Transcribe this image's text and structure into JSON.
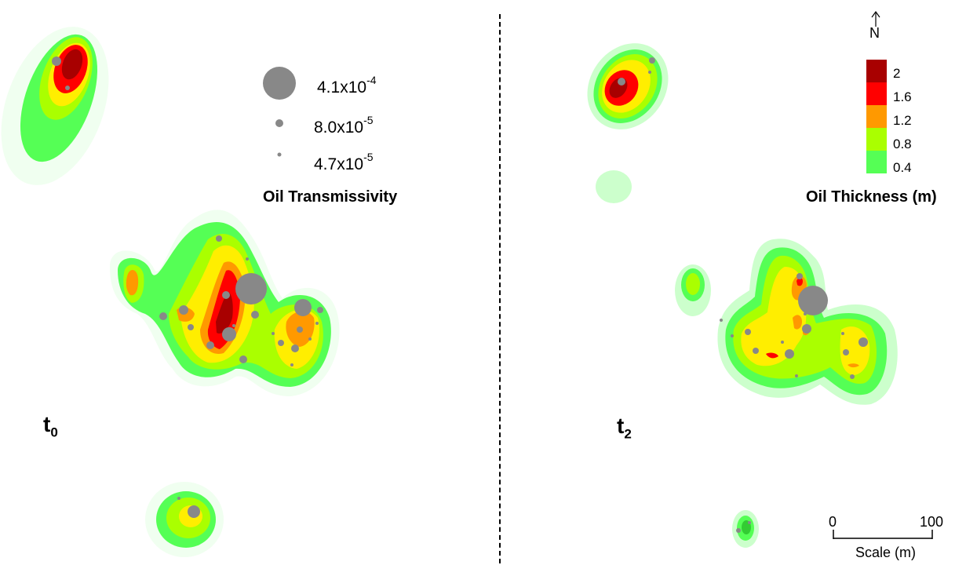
{
  "panels": {
    "left": {
      "label_main": "t",
      "label_sub": "0"
    },
    "right": {
      "label_main": "t",
      "label_sub": "2"
    }
  },
  "transmissivity_legend": {
    "title": "Oil Transmissivity",
    "entries": [
      {
        "mantissa": "4.1x10",
        "exponent": "-4"
      },
      {
        "mantissa": "8.0x10",
        "exponent": "-5"
      },
      {
        "mantissa": "4.7x10",
        "exponent": "-5"
      }
    ],
    "marker_color": "#888888"
  },
  "thickness_legend": {
    "title": "Oil Thickness (m)",
    "classes": [
      {
        "label": "2",
        "color": "#a80000"
      },
      {
        "label": "1.6",
        "color": "#ff0000"
      },
      {
        "label": "1.2",
        "color": "#ff9900"
      },
      {
        "label": "0.8",
        "color": "#aaff00"
      },
      {
        "label": "0.4",
        "color": "#55ff55"
      }
    ],
    "outer_halo_color": "#ccffcc"
  },
  "north_arrow": {
    "letter": "N"
  },
  "scale_bar": {
    "start": "0",
    "end": "100",
    "label": "Scale (m)"
  }
}
